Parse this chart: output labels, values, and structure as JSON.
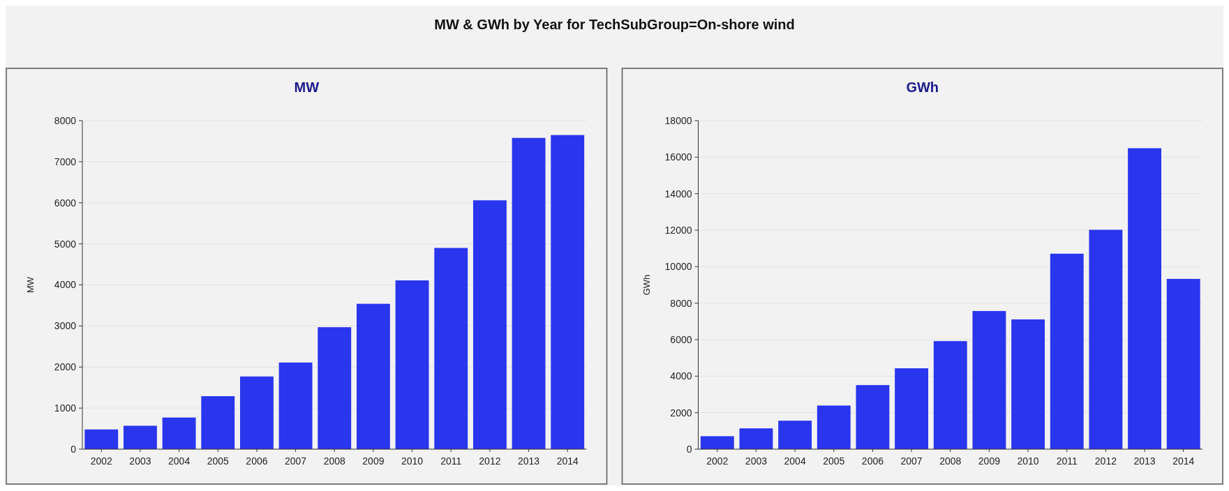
{
  "chart_data": [
    {
      "type": "bar",
      "title": "MW",
      "ylabel": "MW",
      "annotations": [
        "MW & GWh by Year for TechSubGroup=On-shore wind"
      ],
      "categories": [
        "2002",
        "2003",
        "2004",
        "2005",
        "2006",
        "2007",
        "2008",
        "2009",
        "2010",
        "2011",
        "2012",
        "2013",
        "2014"
      ],
      "values": [
        480,
        570,
        770,
        1290,
        1770,
        2110,
        2970,
        3540,
        4110,
        4900,
        6060,
        7580,
        7650
      ],
      "color": "#2a35ee",
      "ylim": [
        0,
        8000
      ],
      "yticks": [
        0,
        1000,
        2000,
        3000,
        4000,
        5000,
        6000,
        7000,
        8000
      ],
      "grid": "y"
    },
    {
      "type": "bar",
      "title": "GWh",
      "ylabel": "GWh",
      "categories": [
        "2002",
        "2003",
        "2004",
        "2005",
        "2006",
        "2007",
        "2008",
        "2009",
        "2010",
        "2011",
        "2012",
        "2013",
        "2014"
      ],
      "values": [
        710,
        1140,
        1560,
        2390,
        3510,
        4430,
        5920,
        7570,
        7110,
        10710,
        12020,
        16490,
        9330
      ],
      "color": "#2a35ee",
      "ylim": [
        0,
        18000
      ],
      "yticks": [
        0,
        2000,
        4000,
        6000,
        8000,
        10000,
        12000,
        14000,
        16000,
        18000
      ],
      "grid": "y"
    }
  ]
}
